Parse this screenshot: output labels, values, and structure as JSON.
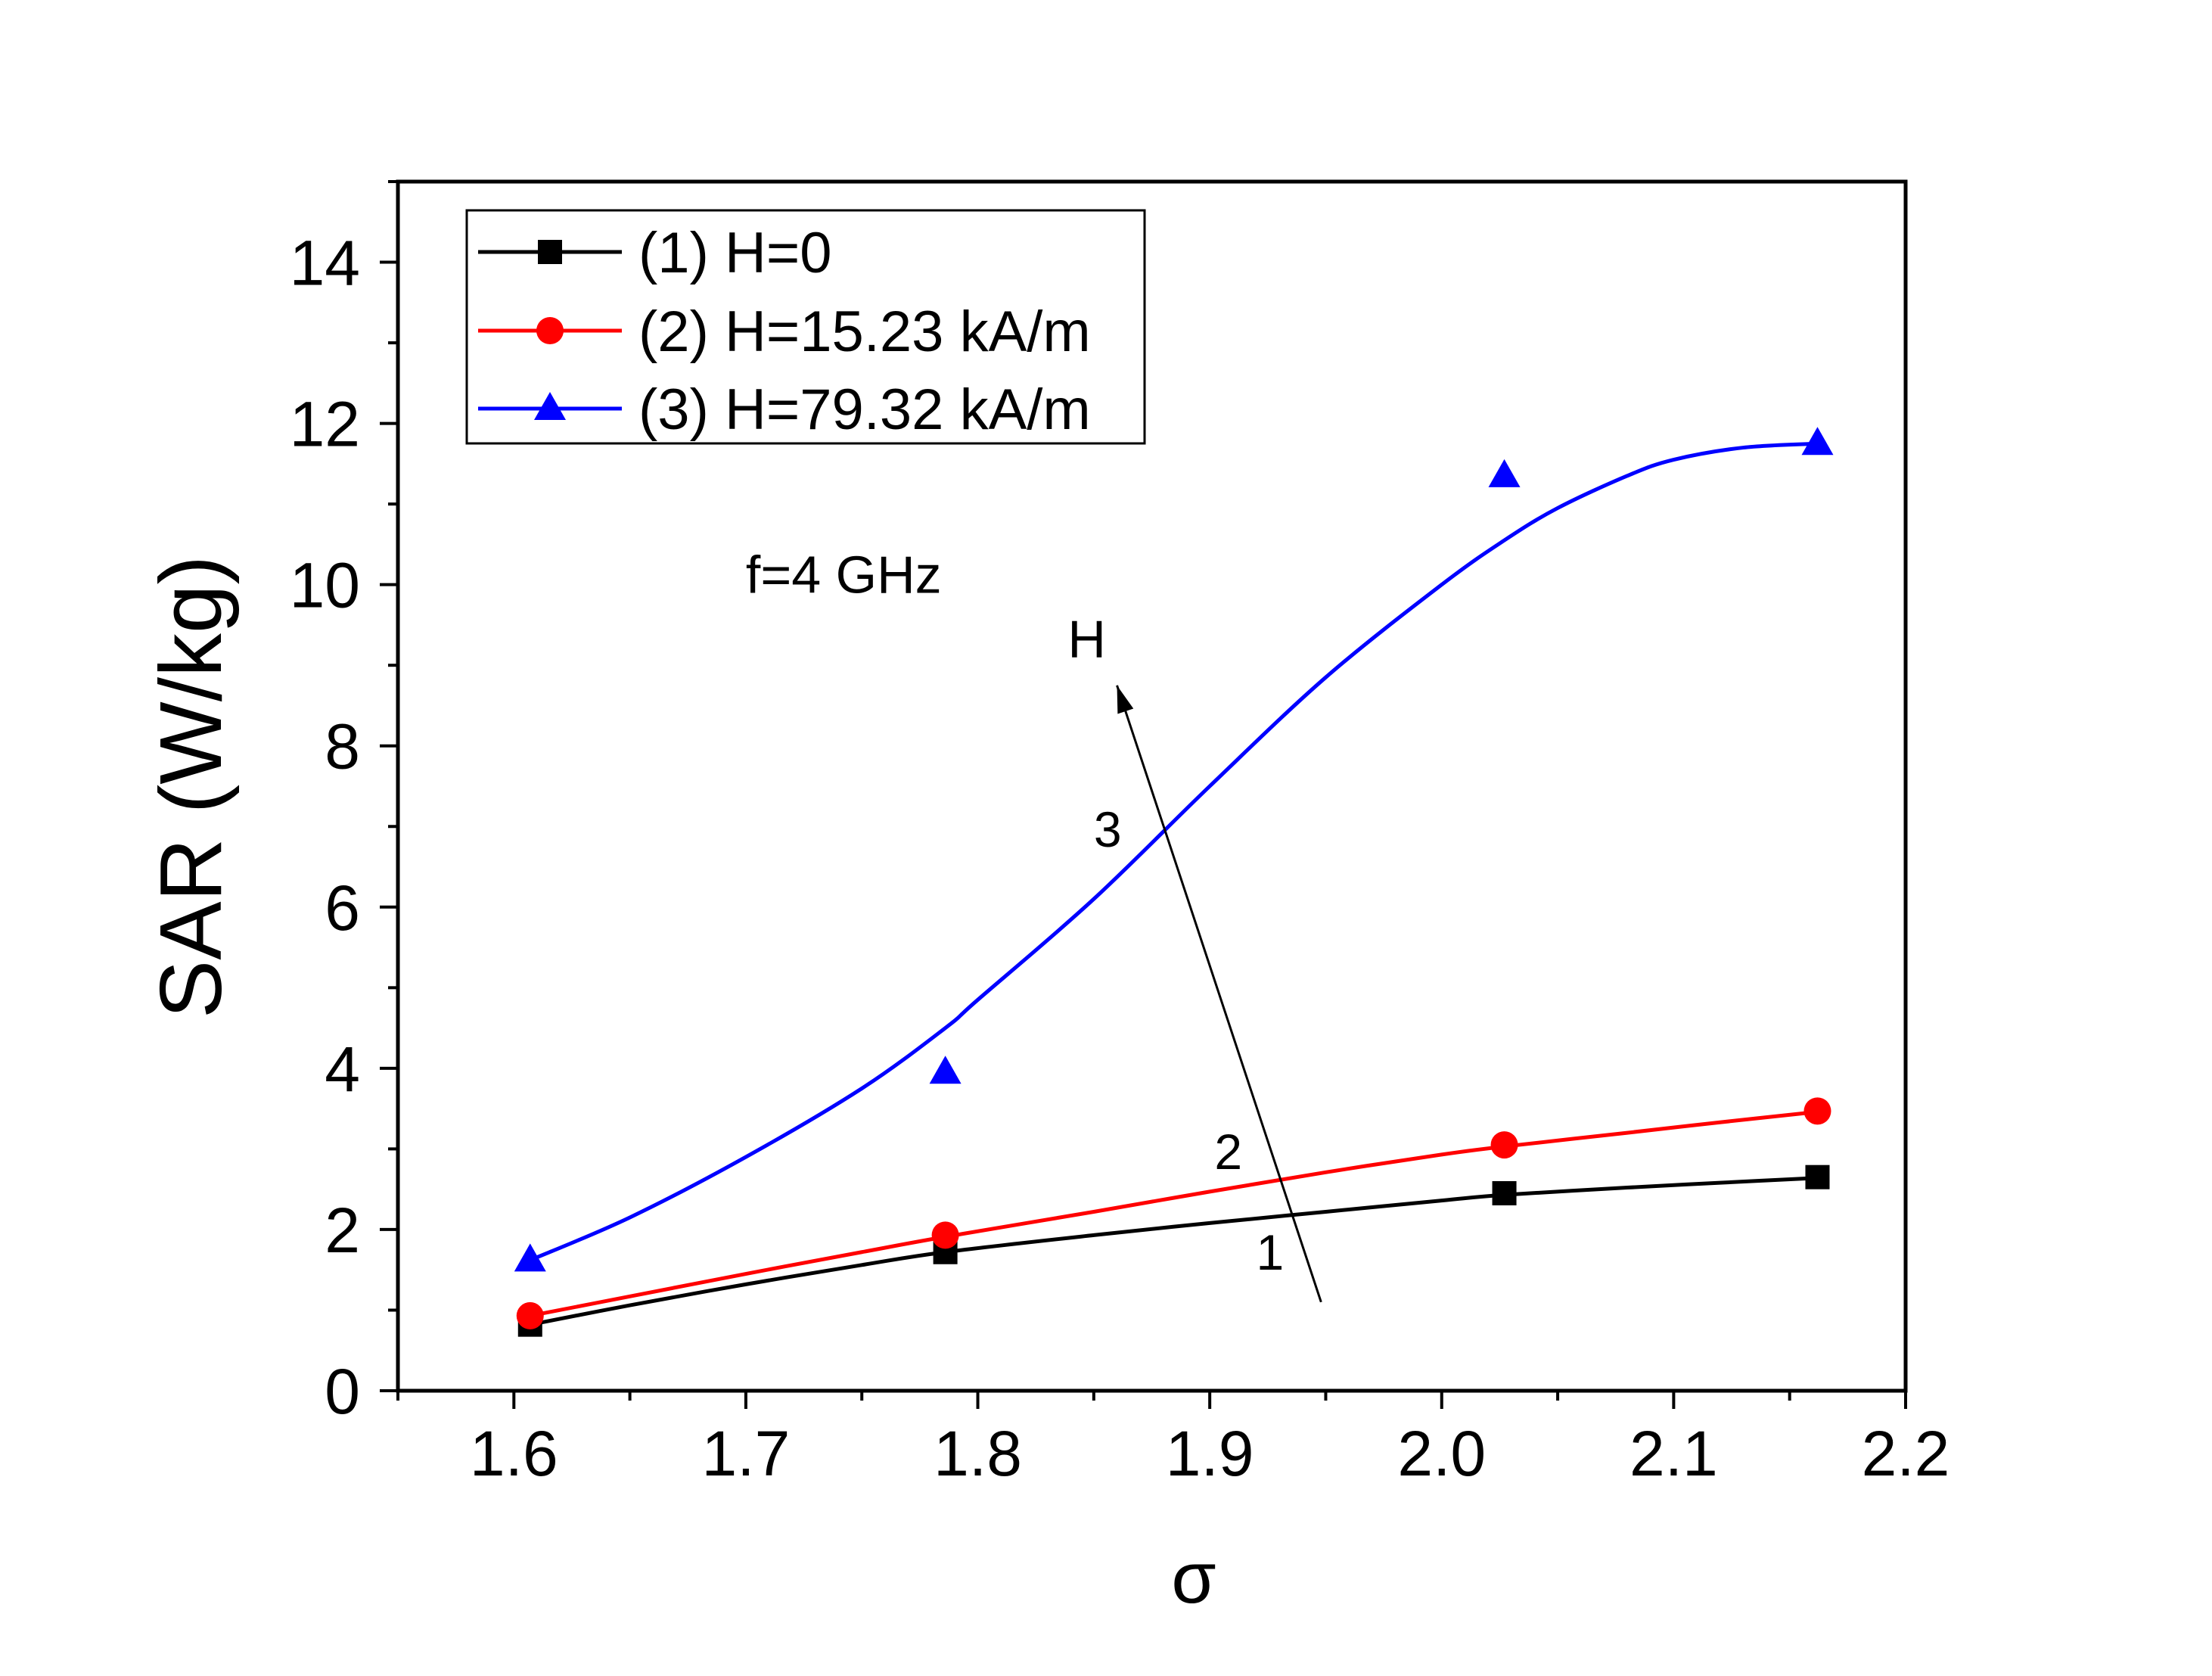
{
  "chart_data": {
    "type": "line",
    "title": "",
    "xlabel": "σ",
    "ylabel": "SAR (W/kg)",
    "xlim": [
      1.55,
      2.2
    ],
    "ylim": [
      0,
      15
    ],
    "x_ticks": [
      1.6,
      1.7,
      1.8,
      1.9,
      2.0,
      2.1,
      2.2
    ],
    "x_tick_labels": [
      "1.6",
      "1.7",
      "1.8",
      "1.9",
      "2.0",
      "2.1",
      "2.2"
    ],
    "y_ticks": [
      0,
      2,
      4,
      6,
      8,
      10,
      12,
      14
    ],
    "y_tick_labels": [
      "0",
      "2",
      "4",
      "6",
      "8",
      "10",
      "12",
      "14"
    ],
    "grid": false,
    "legend_position": "top-left",
    "series": [
      {
        "name": "(1) H=0",
        "color": "#000000",
        "marker": "square",
        "x": [
          1.607,
          1.786,
          2.027,
          2.162
        ],
        "y": [
          0.82,
          1.72,
          2.45,
          2.65
        ],
        "fit_x": [
          1.607,
          1.65,
          1.7,
          1.75,
          1.786,
          1.85,
          1.9,
          1.95,
          2.0,
          2.027,
          2.08,
          2.12,
          2.162
        ],
        "fit_y": [
          0.82,
          1.06,
          1.32,
          1.56,
          1.72,
          1.93,
          2.08,
          2.22,
          2.36,
          2.43,
          2.52,
          2.58,
          2.64
        ]
      },
      {
        "name": "(2) H=15.23 kA/m",
        "color": "#ff0000",
        "marker": "circle",
        "x": [
          1.607,
          1.786,
          2.027,
          2.162
        ],
        "y": [
          0.93,
          1.93,
          3.05,
          3.47
        ],
        "fit_x": [
          1.607,
          1.65,
          1.7,
          1.75,
          1.786,
          1.85,
          1.9,
          1.95,
          2.0,
          2.027,
          2.08,
          2.12,
          2.162
        ],
        "fit_y": [
          0.93,
          1.17,
          1.45,
          1.72,
          1.91,
          2.22,
          2.47,
          2.71,
          2.93,
          3.03,
          3.2,
          3.33,
          3.46
        ]
      },
      {
        "name": "(3) H=79.32 kA/m",
        "color": "#0000ff",
        "marker": "triangle",
        "x": [
          1.607,
          1.786,
          2.027,
          2.162
        ],
        "y": [
          1.62,
          3.95,
          11.35,
          11.75
        ],
        "fit_x": [
          1.607,
          1.65,
          1.7,
          1.75,
          1.786,
          1.8,
          1.85,
          1.9,
          1.95,
          2.0,
          2.027,
          2.05,
          2.08,
          2.1,
          2.13,
          2.162
        ],
        "fit_y": [
          1.62,
          2.15,
          2.9,
          3.75,
          4.5,
          4.85,
          6.1,
          7.5,
          8.85,
          10.0,
          10.55,
          10.95,
          11.35,
          11.55,
          11.7,
          11.75
        ]
      }
    ],
    "annotations": [
      {
        "text": "f=4 GHz",
        "x": 1.7,
        "y": 9.9
      },
      {
        "text": "H",
        "x": 1.847,
        "y": 9.1
      },
      {
        "text": "3",
        "x": 1.856,
        "y": 6.75
      },
      {
        "text": "2",
        "x": 1.908,
        "y": 2.75
      },
      {
        "text": "1",
        "x": 1.926,
        "y": 1.5
      }
    ],
    "arrow": {
      "from": [
        1.948,
        1.1
      ],
      "to": [
        1.86,
        8.75
      ]
    }
  }
}
